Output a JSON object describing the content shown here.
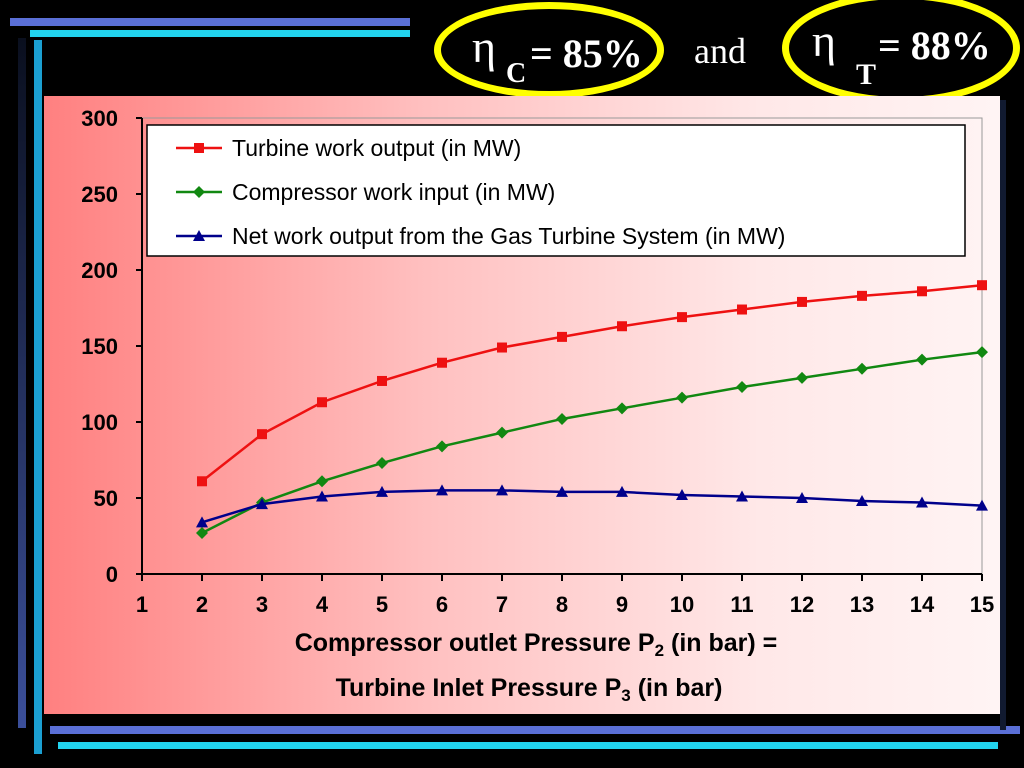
{
  "header": {
    "eta_symbol": "η",
    "compressor_subscript": "C",
    "compressor_value": "= 85%",
    "connector": "and",
    "turbine_subscript": "T",
    "turbine_value": "= 88%",
    "highlight_color": "#ffff00"
  },
  "xlabel": {
    "line1_prefix": "Compressor outlet Pressure P",
    "line1_subscript": "2",
    "line1_suffix": " (in bar) =",
    "line2_prefix": "Turbine Inlet Pressure P",
    "line2_subscript": "3",
    "line2_suffix": " (in bar)"
  },
  "chart_data": {
    "type": "line",
    "title": "",
    "xlim": [
      1,
      15
    ],
    "ylim": [
      0,
      300
    ],
    "x_ticks": [
      1,
      2,
      3,
      4,
      5,
      6,
      7,
      8,
      9,
      10,
      11,
      12,
      13,
      14,
      15
    ],
    "y_ticks": [
      0,
      50,
      100,
      150,
      200,
      250,
      300
    ],
    "grid": false,
    "legend_position": "top",
    "x": [
      2,
      3,
      4,
      5,
      6,
      7,
      8,
      9,
      10,
      11,
      12,
      13,
      14,
      15
    ],
    "series": [
      {
        "name": "Turbine work output (in MW)",
        "color": "#ee1111",
        "marker": "square",
        "values": [
          61,
          92,
          113,
          127,
          139,
          149,
          156,
          163,
          169,
          174,
          179,
          183,
          186,
          190
        ]
      },
      {
        "name": "Compressor work input (in MW)",
        "color": "#118811",
        "marker": "diamond",
        "values": [
          27,
          47,
          61,
          73,
          84,
          93,
          102,
          109,
          116,
          123,
          129,
          135,
          141,
          146
        ]
      },
      {
        "name": "Net work output from the Gas Turbine System (in MW)",
        "color": "#00008b",
        "marker": "triangle",
        "values": [
          34,
          46,
          51,
          54,
          55,
          55,
          54,
          54,
          52,
          51,
          50,
          48,
          47,
          45
        ]
      }
    ]
  }
}
